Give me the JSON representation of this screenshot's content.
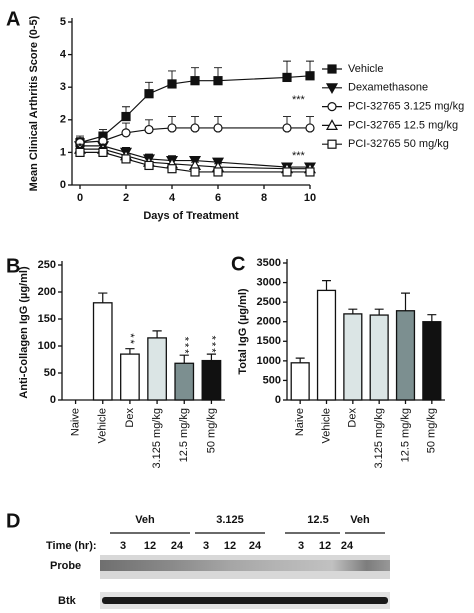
{
  "chart_data": [
    {
      "type": "line",
      "panel": "A",
      "ylabel": "Mean Clinical Arthritis Score (0-5)",
      "xlabel": "Days of Treatment",
      "x": [
        0,
        1,
        2,
        3,
        4,
        5,
        6,
        9,
        10
      ],
      "xlim": [
        0,
        10
      ],
      "xticks": [
        0,
        2,
        4,
        6,
        8,
        10
      ],
      "ylim": [
        0,
        5
      ],
      "yticks": [
        0,
        1,
        2,
        3,
        4,
        5
      ],
      "series": [
        {
          "name": "Vehicle",
          "color": "#111111",
          "marker": "square-filled",
          "values": [
            1.3,
            1.5,
            2.1,
            2.8,
            3.1,
            3.2,
            3.2,
            3.3,
            3.35
          ],
          "errors": [
            0.2,
            0.2,
            0.3,
            0.35,
            0.4,
            0.4,
            0.4,
            0.5,
            0.45
          ]
        },
        {
          "name": "Dexamethasone",
          "color": "#111111",
          "marker": "triangle-down-filled",
          "values": [
            1.2,
            1.2,
            1.0,
            0.8,
            0.75,
            0.75,
            0.7,
            0.55,
            0.55
          ],
          "errors": [
            0.15,
            0.15,
            0.15,
            0.15,
            0.15,
            0.1,
            0.1,
            0.1,
            0.1
          ]
        },
        {
          "name": "PCI-32765 3.125 mg/kg",
          "color": "#111111",
          "marker": "circle-open",
          "values": [
            1.3,
            1.35,
            1.6,
            1.7,
            1.75,
            1.75,
            1.75,
            1.75,
            1.75
          ],
          "errors": [
            0.15,
            0.2,
            0.3,
            0.3,
            0.35,
            0.35,
            0.35,
            0.35,
            0.35
          ]
        },
        {
          "name": "PCI-32765 12.5 mg/kg",
          "color": "#111111",
          "marker": "triangle-up-open",
          "values": [
            1.1,
            1.1,
            0.9,
            0.7,
            0.65,
            0.6,
            0.55,
            0.5,
            0.5
          ],
          "errors": [
            0.15,
            0.15,
            0.15,
            0.1,
            0.1,
            0.1,
            0.1,
            0.1,
            0.1
          ]
        },
        {
          "name": "PCI-32765 50 mg/kg",
          "color": "#111111",
          "marker": "square-open",
          "values": [
            1.0,
            1.0,
            0.8,
            0.6,
            0.5,
            0.4,
            0.4,
            0.4,
            0.4
          ],
          "errors": [
            0.15,
            0.15,
            0.1,
            0.1,
            0.1,
            0.1,
            0.1,
            0.1,
            0.1
          ]
        }
      ],
      "annotations": [
        "***",
        "***"
      ]
    },
    {
      "type": "bar",
      "panel": "B",
      "ylabel": "Anti-Collagen IgG (µg/ml)",
      "categories": [
        "Naive",
        "Vehicle",
        "Dex",
        "3.125 mg/kg",
        "12.5 mg/kg",
        "50 mg/kg"
      ],
      "values": [
        null,
        180,
        85,
        115,
        68,
        73
      ],
      "errors": [
        null,
        18,
        10,
        13,
        15,
        12
      ],
      "colors": [
        "#ffffff",
        "#ffffff",
        "#ffffff",
        "#dbe5e5",
        "#7c8f90",
        "#111111"
      ],
      "value_annotations": [
        null,
        null,
        "**",
        null,
        "***",
        "***"
      ],
      "ylim": [
        0,
        250
      ],
      "yticks": [
        0,
        50,
        100,
        150,
        200,
        250
      ]
    },
    {
      "type": "bar",
      "panel": "C",
      "ylabel": "Total IgG (µg/ml)",
      "categories": [
        "Naive",
        "Vehicle",
        "Dex",
        "3.125 mg/kg",
        "12.5 mg/kg",
        "50 mg/kg"
      ],
      "values": [
        950,
        2800,
        2200,
        2170,
        2280,
        2000
      ],
      "errors": [
        120,
        250,
        120,
        150,
        450,
        180
      ],
      "colors": [
        "#ffffff",
        "#ffffff",
        "#dbe5e5",
        "#dbe5e5",
        "#7c8f90",
        "#111111"
      ],
      "ylim": [
        0,
        3500
      ],
      "yticks": [
        0,
        500,
        1000,
        1500,
        2000,
        2500,
        3000,
        3500
      ]
    }
  ],
  "blot": {
    "panel": "D",
    "groups": [
      "Veh",
      "3.125",
      "12.5",
      "Veh"
    ],
    "time_label": "Time (hr):",
    "times": [
      "3",
      "12",
      "24",
      "3",
      "12",
      "24",
      "3",
      "12",
      "24"
    ],
    "rows": [
      "Probe",
      "Btk"
    ]
  }
}
